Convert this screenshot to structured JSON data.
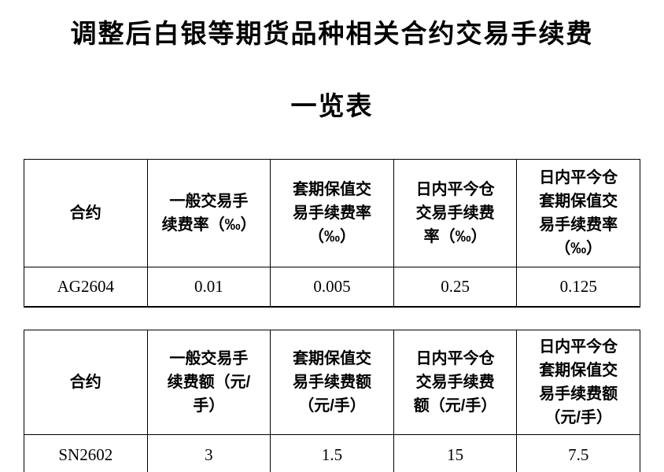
{
  "colors": {
    "text": "#000000",
    "border": "#000000",
    "background": "#ffffff"
  },
  "document": {
    "title_line1": "调整后白银等期货品种相关合约交易手续费",
    "title_line2": "一览表"
  },
  "tables": [
    {
      "name": "fee-rate-table",
      "headers": [
        "合约",
        "一般交易手续费率（‰）",
        "套期保值交易手续费率（‰）",
        "日内平今仓交易手续费率（‰）",
        "日内平今仓套期保值交易手续费率（‰）"
      ],
      "rows": [
        [
          "AG2604",
          "0.01",
          "0.005",
          "0.25",
          "0.125"
        ]
      ]
    },
    {
      "name": "fee-amount-table",
      "headers": [
        "合约",
        "一般交易手续费额（元/手）",
        "套期保值交易手续费额（元/手）",
        "日内平今仓交易手续费额（元/手）",
        "日内平今仓套期保值交易手续费额（元/手）"
      ],
      "rows": [
        [
          "SN2602",
          "3",
          "1.5",
          "15",
          "7.5"
        ]
      ]
    }
  ]
}
